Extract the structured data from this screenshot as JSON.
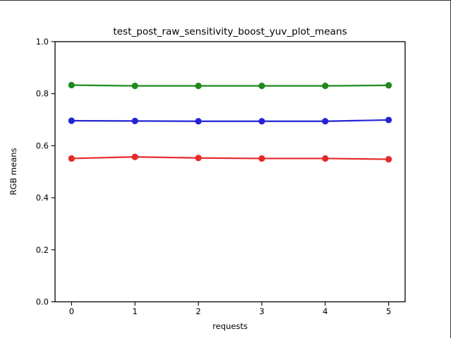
{
  "figure": {
    "background": "#ffffff",
    "title": "test_post_raw_sensitivity_boost_yuv_plot_means",
    "xlabel": "requests",
    "ylabel": "RGB means"
  },
  "chart_data": {
    "type": "line",
    "title": "test_post_raw_sensitivity_boost_yuv_plot_means",
    "xlabel": "requests",
    "ylabel": "RGB means",
    "x": [
      0,
      1,
      2,
      3,
      4,
      5
    ],
    "xtick_labels": [
      "0",
      "1",
      "2",
      "3",
      "4",
      "5"
    ],
    "yticks": [
      0.0,
      0.2,
      0.4,
      0.6,
      0.8,
      1.0
    ],
    "ytick_labels": [
      "0.0",
      "0.2",
      "0.4",
      "0.6",
      "0.8",
      "1.0"
    ],
    "xlim": [
      -0.26,
      5.26
    ],
    "ylim": [
      0.0,
      1.0
    ],
    "grid": false,
    "legend_position": "none",
    "marker": "circle",
    "axis_color": "#000000",
    "series": [
      {
        "name": "green",
        "color": "#1e8a1e",
        "values": [
          0.833,
          0.83,
          0.83,
          0.83,
          0.83,
          0.832
        ]
      },
      {
        "name": "blue",
        "color": "#2424d6",
        "values": [
          0.696,
          0.695,
          0.694,
          0.694,
          0.694,
          0.699
        ]
      },
      {
        "name": "red",
        "color": "#e52a2a",
        "values": [
          0.551,
          0.557,
          0.553,
          0.551,
          0.551,
          0.548
        ]
      }
    ]
  }
}
